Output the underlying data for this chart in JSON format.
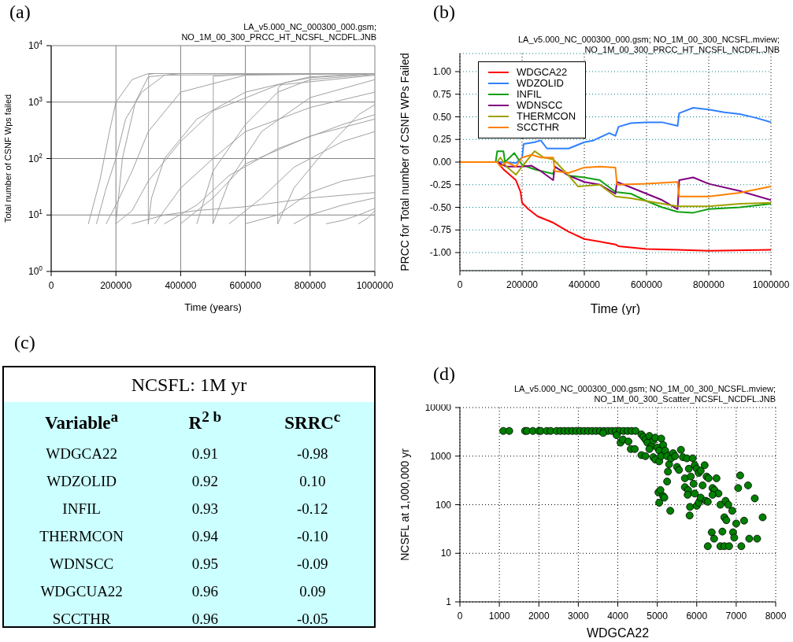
{
  "chart_data": [
    {
      "type": "line",
      "title": "(a)",
      "annotations": [
        "LA_v5.000_NC_000300_000.gsm;",
        "NO_1M_00_300_PRCC_HT_NCSFL_NCDFL.JNB"
      ],
      "xlabel": "Time (years)",
      "ylabel": "Total number of CSNF Wps failed",
      "log": true,
      "grid": true,
      "xlim": [
        0,
        1000000
      ],
      "xticks": [
        0,
        200000,
        400000,
        600000,
        800000,
        1000000
      ],
      "ylim": [
        1,
        10000
      ],
      "yticks": [
        {
          "value": 1,
          "label": "10$^{0}$"
        },
        {
          "value": 10,
          "label": "10$^{1}$"
        },
        {
          "value": 100,
          "label": "10$^{2}$"
        },
        {
          "value": 1000,
          "label": "10$^{3}$"
        },
        {
          "value": 10000,
          "label": "10$^{4}$"
        }
      ],
      "series": [
        {
          "color": "#a0a0a0",
          "x": [
            115000,
            150000,
            180000,
            200000,
            250000,
            300000,
            1000000
          ],
          "values": [
            7,
            40,
            300,
            1000,
            2500,
            3200,
            3200
          ]
        },
        {
          "color": "#a0a0a0",
          "x": [
            140000,
            170000,
            200000,
            230000,
            280000,
            350000,
            1000000
          ],
          "values": [
            7,
            30,
            100,
            500,
            1500,
            3000,
            3200
          ]
        },
        {
          "color": "#a0a0a0",
          "x": [
            170000,
            200000,
            250000,
            300000,
            400000,
            600000,
            1000000
          ],
          "values": [
            7,
            15,
            60,
            300,
            1500,
            3000,
            3200
          ]
        },
        {
          "color": "#a0a0a0",
          "x": [
            200000,
            250000,
            300000,
            400000,
            500000,
            700000,
            1000000
          ],
          "values": [
            7,
            12,
            40,
            200,
            700,
            2000,
            3000
          ]
        },
        {
          "color": "#a0a0a0",
          "x": [
            200000,
            220000,
            260000,
            300000,
            400000,
            1000000
          ],
          "values": [
            7,
            100,
            1000,
            2800,
            3200,
            3200
          ]
        },
        {
          "color": "#a0a0a0",
          "x": [
            250000,
            350000,
            450000,
            600000,
            800000,
            1000000
          ],
          "values": [
            7,
            10,
            12,
            14,
            20,
            25
          ]
        },
        {
          "color": "#a0a0a0",
          "x": [
            300000,
            301000,
            320000,
            400000,
            1000000
          ],
          "values": [
            7,
            3100,
            3200,
            3200,
            3200
          ]
        },
        {
          "color": "#a0a0a0",
          "x": [
            300000,
            310000,
            350000,
            450000,
            600000,
            800000,
            1000000
          ],
          "values": [
            7,
            20,
            100,
            500,
            1500,
            2800,
            3200
          ]
        },
        {
          "color": "#a0a0a0",
          "x": [
            320000,
            400000,
            500000,
            600000,
            800000,
            1000000
          ],
          "values": [
            7,
            30,
            100,
            300,
            800,
            1500
          ]
        },
        {
          "color": "#a0a0a0",
          "x": [
            350000,
            450000,
            550000,
            700000,
            900000,
            1000000
          ],
          "values": [
            7,
            15,
            50,
            150,
            400,
            600
          ]
        },
        {
          "color": "#a0a0a0",
          "x": [
            400000,
            500000,
            600000,
            800000,
            1000000
          ],
          "values": [
            7,
            20,
            80,
            250,
            500
          ]
        },
        {
          "color": "#a0a0a0",
          "x": [
            450000,
            500000,
            600000,
            700000,
            800000,
            1000000
          ],
          "values": [
            7,
            60,
            400,
            1500,
            2500,
            3100
          ]
        },
        {
          "color": "#a0a0a0",
          "x": [
            500000,
            501000,
            520000,
            600000,
            800000,
            1000000
          ],
          "values": [
            7,
            2900,
            2900,
            3100,
            3200,
            3200
          ]
        },
        {
          "color": "#a0a0a0",
          "x": [
            500000,
            550000,
            650000,
            800000,
            1000000
          ],
          "values": [
            7,
            40,
            300,
            1200,
            2500
          ]
        },
        {
          "color": "#a0a0a0",
          "x": [
            550000,
            650000,
            750000,
            900000,
            1000000
          ],
          "values": [
            7,
            20,
            70,
            200,
            300
          ]
        },
        {
          "color": "#a0a0a0",
          "x": [
            600000,
            700000,
            800000,
            900000,
            1000000
          ],
          "values": [
            7,
            10,
            25,
            40,
            50
          ]
        },
        {
          "color": "#a0a0a0",
          "x": [
            700000,
            701000,
            720000,
            800000,
            1000000
          ],
          "values": [
            7,
            1800,
            2200,
            2700,
            3200
          ]
        },
        {
          "color": "#a0a0a0",
          "x": [
            700000,
            750000,
            850000,
            950000,
            1000000
          ],
          "values": [
            7,
            30,
            150,
            600,
            900
          ]
        },
        {
          "color": "#a0a0a0",
          "x": [
            750000,
            800000,
            900000,
            1000000
          ],
          "values": [
            7,
            10,
            15,
            20
          ]
        },
        {
          "color": "#a0a0a0",
          "x": [
            850000,
            900000,
            950000,
            1000000
          ],
          "values": [
            7,
            8,
            10,
            13
          ]
        },
        {
          "color": "#a0a0a0",
          "x": [
            950000,
            980000,
            1000000
          ],
          "values": [
            7,
            9,
            12
          ]
        }
      ]
    },
    {
      "type": "line",
      "title": "(b)",
      "annotations": [
        "LA_v5.000_NC_000300_000.gsm; NO_1M_00_300_NCSFL.mview;",
        "NO_1M_00_300_PRCC_HT_NCSFL_NCDFL.JNB"
      ],
      "xlabel": "Time (yr)",
      "ylabel": "PRCC for Total number of CSNF WPs Failed",
      "grid": true,
      "legend": "top left",
      "xlim": [
        0,
        1000000
      ],
      "xticks": [
        0,
        200000,
        400000,
        600000,
        800000,
        1000000
      ],
      "ylim": [
        -1.2,
        1.2
      ],
      "yticks": [
        {
          "value": -1,
          "label": "-1.00"
        },
        {
          "value": -0.75,
          "label": "-0.75"
        },
        {
          "value": -0.5,
          "label": "-0.50"
        },
        {
          "value": -0.25,
          "label": "-0.25"
        },
        {
          "value": 0,
          "label": "0.00"
        },
        {
          "value": 0.25,
          "label": "0.25"
        },
        {
          "value": 0.5,
          "label": "0.50"
        },
        {
          "value": 0.75,
          "label": "0.75"
        },
        {
          "value": 1,
          "label": "1.00"
        }
      ],
      "series": [
        {
          "name": "WDGCA22",
          "color": "#ff0000",
          "x": [
            0,
            120000,
            140000,
            160000,
            180000,
            195000,
            200000,
            220000,
            250000,
            300000,
            350000,
            400000,
            500000,
            510000,
            600000,
            700000,
            800000,
            1000000
          ],
          "values": [
            0,
            0,
            -0.08,
            -0.14,
            -0.2,
            -0.33,
            -0.45,
            -0.52,
            -0.6,
            -0.67,
            -0.77,
            -0.85,
            -0.91,
            -0.93,
            -0.96,
            -0.97,
            -0.98,
            -0.97
          ]
        },
        {
          "name": "WDZOLID",
          "color": "#3080ff",
          "x": [
            0,
            120000,
            150000,
            180000,
            200000,
            205000,
            240000,
            260000,
            280000,
            350000,
            400000,
            430000,
            480000,
            500000,
            510000,
            550000,
            600000,
            650000,
            700000,
            705000,
            750000,
            800000,
            850000,
            900000,
            950000,
            1000000
          ],
          "values": [
            0,
            0,
            0,
            -0.01,
            0.05,
            0.2,
            0.22,
            0.24,
            0.15,
            0.15,
            0.22,
            0.24,
            0.32,
            0.29,
            0.39,
            0.43,
            0.44,
            0.44,
            0.4,
            0.54,
            0.6,
            0.58,
            0.55,
            0.53,
            0.49,
            0.44
          ]
        },
        {
          "name": "INFIL",
          "color": "#10a010",
          "x": [
            0,
            115000,
            120000,
            140000,
            145000,
            160000,
            175000,
            200000,
            240000,
            300000,
            305000,
            350000,
            400000,
            450000,
            500000,
            550000,
            600000,
            650000,
            700000,
            750000,
            800000,
            900000,
            1000000
          ],
          "values": [
            0,
            0,
            0.12,
            0.12,
            0,
            0.05,
            0.1,
            -0.03,
            -0.08,
            -0.13,
            -0.05,
            -0.15,
            -0.17,
            -0.2,
            -0.33,
            -0.35,
            -0.43,
            -0.5,
            -0.55,
            -0.56,
            -0.52,
            -0.5,
            -0.46
          ]
        },
        {
          "name": "WDNSCC",
          "color": "#800080",
          "x": [
            0,
            120000,
            150000,
            200000,
            230000,
            260000,
            300000,
            305000,
            350000,
            400000,
            450000,
            500000,
            505000,
            550000,
            600000,
            650000,
            700000,
            705000,
            750000,
            800000,
            900000,
            1000000
          ],
          "values": [
            0,
            0,
            -0.05,
            -0.05,
            -0.04,
            -0.1,
            -0.2,
            -0.05,
            -0.15,
            -0.22,
            -0.25,
            -0.35,
            -0.22,
            -0.28,
            -0.35,
            -0.42,
            -0.52,
            -0.2,
            -0.17,
            -0.24,
            -0.32,
            -0.42
          ]
        },
        {
          "name": "THERMCON",
          "color": "#a0a000",
          "x": [
            0,
            120000,
            130000,
            150000,
            180000,
            200000,
            240000,
            270000,
            300000,
            350000,
            380000,
            450000,
            500000,
            550000,
            600000,
            700000,
            800000,
            900000,
            1000000
          ],
          "values": [
            0,
            0,
            0.05,
            -0.05,
            -0.14,
            -0.05,
            0.12,
            0.05,
            0.03,
            -0.15,
            -0.27,
            -0.25,
            -0.38,
            -0.4,
            -0.43,
            -0.49,
            -0.49,
            -0.46,
            -0.45
          ]
        },
        {
          "name": "SCCTHR",
          "color": "#ff8000",
          "x": [
            0,
            120000,
            130000,
            150000,
            180000,
            200000,
            230000,
            260000,
            300000,
            305000,
            350000,
            400000,
            450000,
            500000,
            505000,
            600000,
            700000,
            705000,
            800000,
            900000,
            1000000
          ],
          "values": [
            0,
            0,
            -0.05,
            0,
            -0.05,
            0.05,
            0.08,
            0.05,
            0.05,
            -0.1,
            -0.12,
            -0.06,
            -0.05,
            -0.06,
            -0.25,
            -0.24,
            -0.22,
            -0.38,
            -0.38,
            -0.34,
            -0.27
          ]
        }
      ]
    },
    {
      "type": "other",
      "title": "(c)",
      "subtitle": "NCSFL: 1M yr",
      "xlabel": "Variable$^{a}$",
      "categories": [
        "WDGCA22",
        "WDZOLID",
        "INFIL",
        "THERMCON",
        "WDNSCC",
        "WDGCUA22",
        "SCCTHR"
      ],
      "series": [
        {
          "name": "R$^{2  b}$",
          "values": [
            0.91,
            0.92,
            0.93,
            0.94,
            0.95,
            0.96,
            0.96
          ],
          "value_labels": [
            "0.91",
            "0.92",
            "0.93",
            "0.94",
            "0.95",
            "0.96",
            "0.96"
          ]
        },
        {
          "name": "SRRC$^{c}$",
          "values": [
            -0.98,
            0.1,
            -0.12,
            -0.1,
            -0.09,
            0.09,
            -0.05
          ],
          "value_labels": [
            "-0.98",
            "0.10",
            "-0.12",
            "-0.10",
            "-0.09",
            "0.09",
            "-0.05"
          ]
        }
      ]
    },
    {
      "type": "scatter",
      "title": "(d)",
      "annotations": [
        "LA_v5.000_NC_000300_000.gsm; NO_1M_00_300_NCSFL.mview;",
        "NO_1M_00_300_Scatter_NCSFL_NCDFL.JNB"
      ],
      "xlabel": "WDGCA22",
      "ylabel": "NCSFL at 1,000,000 yr",
      "log": true,
      "grid": true,
      "marker": "circle",
      "color": "#008000",
      "xlim": [
        0,
        8000
      ],
      "xticks": [
        0,
        1000,
        2000,
        3000,
        4000,
        5000,
        6000,
        7000,
        8000
      ],
      "ylim": [
        1,
        10000
      ],
      "yticks": [
        1,
        10,
        100,
        1000,
        10000
      ],
      "x": [
        1100,
        1250,
        1650,
        1700,
        1850,
        2000,
        2050,
        2200,
        2300,
        2450,
        2550,
        2650,
        2750,
        2850,
        2950,
        3050,
        3150,
        3250,
        3350,
        3450,
        3550,
        3650,
        3750,
        3850,
        3950,
        4050,
        4150,
        4250,
        4350,
        4450,
        3630,
        3970,
        4070,
        4130,
        4270,
        4330,
        4430,
        4600,
        4650,
        4700,
        4750,
        4800,
        4850,
        4900,
        4950,
        5000,
        5050,
        5100,
        5150,
        5200,
        4600,
        4700,
        4800,
        4900,
        4950,
        5050,
        5100,
        5200,
        5250,
        5300,
        5350,
        5400,
        5450,
        5500,
        5550,
        5600,
        5650,
        5700,
        5750,
        5800,
        5850,
        5900,
        5950,
        6000,
        6050,
        6100,
        6200,
        6250,
        6300,
        6400,
        6450,
        6500,
        6550,
        5270,
        5250,
        5030,
        5080,
        5050,
        5150,
        5180,
        5330,
        5700,
        5780,
        5770,
        5830,
        5820,
        5950,
        5920,
        6000,
        6050,
        6100,
        6150,
        6230,
        6280,
        6400,
        6600,
        6730,
        6800,
        6900,
        6700,
        6750,
        6650,
        6600,
        6700,
        6280,
        6380,
        6440,
        6820,
        6920,
        6950,
        7000,
        7050,
        7100,
        7130,
        7200,
        7300,
        7330,
        7470,
        7530,
        7670
      ],
      "values": [
        3300,
        3300,
        3300,
        3300,
        3300,
        3300,
        3300,
        3300,
        3300,
        3300,
        3300,
        3300,
        3300,
        3300,
        3300,
        3300,
        3300,
        3300,
        3300,
        3300,
        3300,
        3300,
        3300,
        3300,
        3300,
        3300,
        3300,
        3300,
        3300,
        3300,
        3000,
        2700,
        1900,
        2200,
        2000,
        1400,
        1400,
        2800,
        2500,
        2200,
        1900,
        2600,
        1600,
        2100,
        2400,
        1500,
        1300,
        2300,
        1700,
        1200,
        1050,
        1000,
        1400,
        950,
        850,
        780,
        1000,
        1300,
        1000,
        680,
        900,
        1150,
        1000,
        600,
        520,
        1350,
        950,
        350,
        900,
        550,
        380,
        900,
        650,
        550,
        450,
        500,
        650,
        380,
        350,
        220,
        200,
        350,
        170,
        480,
        300,
        180,
        200,
        110,
        150,
        140,
        75,
        230,
        200,
        160,
        90,
        60,
        170,
        270,
        95,
        110,
        140,
        250,
        120,
        115,
        160,
        100,
        120,
        100,
        75,
        55,
        48,
        28,
        14,
        14,
        14,
        27,
        20,
        14,
        27,
        21,
        41,
        220,
        400,
        14,
        47,
        250,
        20,
        135,
        20,
        55
      ]
    }
  ]
}
